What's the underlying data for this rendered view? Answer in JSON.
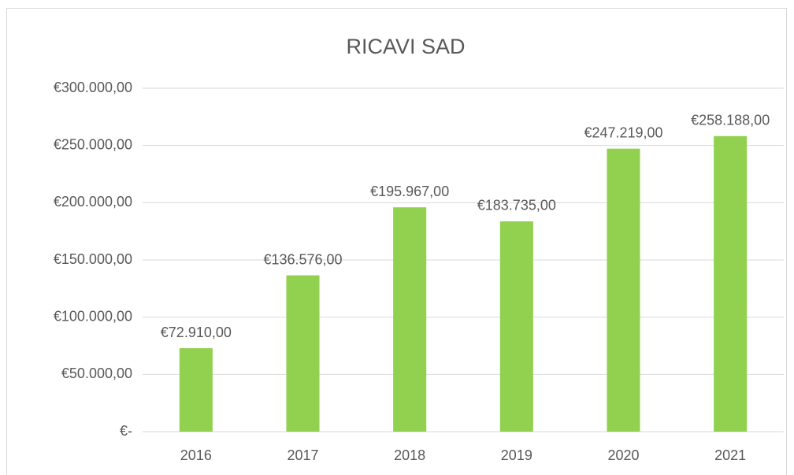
{
  "chart_data": {
    "type": "bar",
    "title": "RICAVI SAD",
    "categories": [
      "2016",
      "2017",
      "2018",
      "2019",
      "2020",
      "2021"
    ],
    "values": [
      72910,
      136576,
      195967,
      183735,
      247219,
      258188
    ],
    "value_labels": [
      "€72.910,00",
      "€136.576,00",
      "€195.967,00",
      "€183.735,00",
      "€247.219,00",
      "€258.188,00"
    ],
    "color": "#92d050",
    "ylim": [
      0,
      300000
    ],
    "yticks": [
      {
        "value": 0,
        "label": "€-"
      },
      {
        "value": 50000,
        "label": "€50.000,00"
      },
      {
        "value": 100000,
        "label": "€100.000,00"
      },
      {
        "value": 150000,
        "label": "€150.000,00"
      },
      {
        "value": 200000,
        "label": "€200.000,00"
      },
      {
        "value": 250000,
        "label": "€250.000,00"
      },
      {
        "value": 300000,
        "label": "€300.000,00"
      }
    ],
    "grid": true
  }
}
